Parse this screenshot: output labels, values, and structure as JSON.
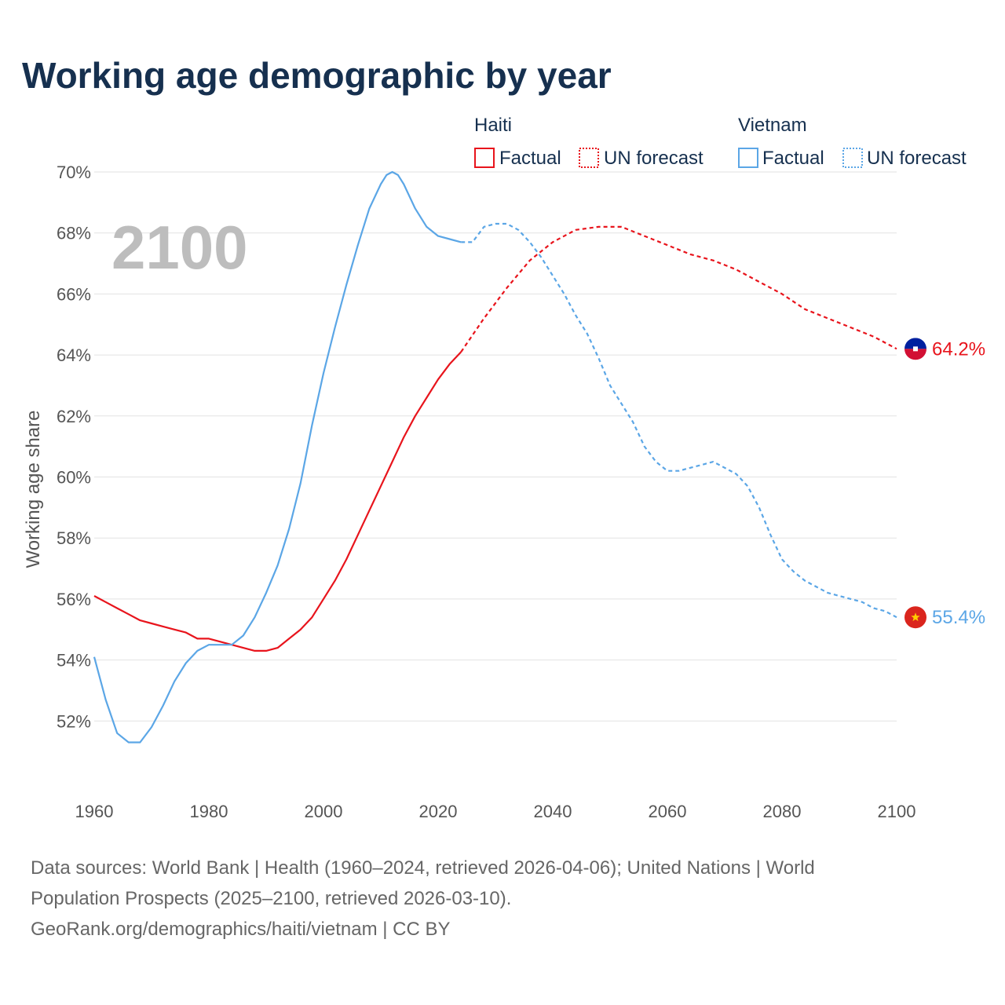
{
  "chart_data": {
    "type": "line",
    "title": "Working age demographic by year",
    "year_label": "2100",
    "ylabel": "Working age share",
    "xlabel": "",
    "xlim": [
      1960,
      2100
    ],
    "ylim": [
      50,
      70
    ],
    "x_ticks": [
      {
        "value": 1960,
        "label": "1960"
      },
      {
        "value": 1980,
        "label": "1980"
      },
      {
        "value": 2000,
        "label": "2000"
      },
      {
        "value": 2020,
        "label": "2020"
      },
      {
        "value": 2040,
        "label": "2040"
      },
      {
        "value": 2060,
        "label": "2060"
      },
      {
        "value": 2080,
        "label": "2080"
      },
      {
        "value": 2100,
        "label": "2100"
      }
    ],
    "y_ticks": [
      {
        "value": 52,
        "label": "52%"
      },
      {
        "value": 54,
        "label": "54%"
      },
      {
        "value": 56,
        "label": "56%"
      },
      {
        "value": 58,
        "label": "58%"
      },
      {
        "value": 60,
        "label": "60%"
      },
      {
        "value": 62,
        "label": "62%"
      },
      {
        "value": 64,
        "label": "64%"
      },
      {
        "value": 66,
        "label": "66%"
      },
      {
        "value": 68,
        "label": "68%"
      },
      {
        "value": 70,
        "label": "70%"
      }
    ],
    "legend": {
      "groups": [
        {
          "name": "Haiti",
          "color": "#e8141c",
          "factual_label": "Factual",
          "forecast_label": "UN forecast"
        },
        {
          "name": "Vietnam",
          "color": "#5ba6e6",
          "factual_label": "Factual",
          "forecast_label": "UN forecast"
        }
      ]
    },
    "series": [
      {
        "name": "Haiti",
        "color": "#e8141c",
        "end_label": "64.2%",
        "flag_colors": [
          "#00209f",
          "#d21034"
        ],
        "factual": {
          "x": [
            1960,
            1962,
            1964,
            1966,
            1968,
            1970,
            1972,
            1974,
            1976,
            1978,
            1980,
            1982,
            1984,
            1986,
            1988,
            1990,
            1992,
            1994,
            1996,
            1998,
            2000,
            2002,
            2004,
            2006,
            2008,
            2010,
            2012,
            2014,
            2016,
            2018,
            2020,
            2022,
            2024
          ],
          "y": [
            56.1,
            55.9,
            55.7,
            55.5,
            55.3,
            55.2,
            55.1,
            55.0,
            54.9,
            54.7,
            54.7,
            54.6,
            54.5,
            54.4,
            54.3,
            54.3,
            54.4,
            54.7,
            55.0,
            55.4,
            56.0,
            56.6,
            57.3,
            58.1,
            58.9,
            59.7,
            60.5,
            61.3,
            62.0,
            62.6,
            63.2,
            63.7,
            64.1
          ]
        },
        "forecast": {
          "x": [
            2024,
            2028,
            2032,
            2036,
            2040,
            2044,
            2048,
            2052,
            2056,
            2060,
            2064,
            2068,
            2072,
            2076,
            2080,
            2084,
            2088,
            2092,
            2096,
            2100
          ],
          "y": [
            64.1,
            65.2,
            66.2,
            67.1,
            67.7,
            68.1,
            68.2,
            68.2,
            67.9,
            67.6,
            67.3,
            67.1,
            66.8,
            66.4,
            66.0,
            65.5,
            65.2,
            64.9,
            64.6,
            64.2
          ]
        }
      },
      {
        "name": "Vietnam",
        "color": "#5ba6e6",
        "end_label": "55.4%",
        "flag_colors": [
          "#da251d",
          "#ffcd00"
        ],
        "factual": {
          "x": [
            1960,
            1962,
            1964,
            1966,
            1968,
            1970,
            1972,
            1974,
            1976,
            1978,
            1980,
            1982,
            1984,
            1986,
            1988,
            1990,
            1992,
            1994,
            1996,
            1998,
            2000,
            2002,
            2004,
            2006,
            2008,
            2010,
            2011,
            2012,
            2013,
            2014,
            2016,
            2018,
            2020,
            2022,
            2024
          ],
          "y": [
            54.1,
            52.7,
            51.6,
            51.3,
            51.3,
            51.8,
            52.5,
            53.3,
            53.9,
            54.3,
            54.5,
            54.5,
            54.5,
            54.8,
            55.4,
            56.2,
            57.1,
            58.3,
            59.8,
            61.7,
            63.4,
            64.9,
            66.3,
            67.6,
            68.8,
            69.6,
            69.9,
            70.0,
            69.9,
            69.6,
            68.8,
            68.2,
            67.9,
            67.8,
            67.7
          ]
        },
        "forecast": {
          "x": [
            2024,
            2026,
            2028,
            2030,
            2032,
            2034,
            2036,
            2038,
            2040,
            2042,
            2044,
            2046,
            2048,
            2050,
            2052,
            2054,
            2056,
            2058,
            2060,
            2062,
            2064,
            2066,
            2068,
            2070,
            2072,
            2074,
            2076,
            2078,
            2080,
            2082,
            2084,
            2086,
            2088,
            2090,
            2092,
            2094,
            2096,
            2098,
            2100
          ],
          "y": [
            67.7,
            67.7,
            68.2,
            68.3,
            68.3,
            68.1,
            67.7,
            67.2,
            66.6,
            66.0,
            65.3,
            64.7,
            63.9,
            63.0,
            62.4,
            61.8,
            61.0,
            60.5,
            60.2,
            60.2,
            60.3,
            60.4,
            60.5,
            60.3,
            60.1,
            59.7,
            59.0,
            58.1,
            57.3,
            56.9,
            56.6,
            56.4,
            56.2,
            56.1,
            56.0,
            55.9,
            55.7,
            55.6,
            55.4
          ]
        }
      }
    ]
  },
  "source": {
    "line1": "Data sources: World Bank | Health (1960–2024, retrieved 2026-04-06); United Nations | World",
    "line2": "Population Prospects (2025–2100, retrieved 2026-03-10).",
    "line3": "GeoRank.org/demographics/haiti/vietnam | CC BY"
  }
}
